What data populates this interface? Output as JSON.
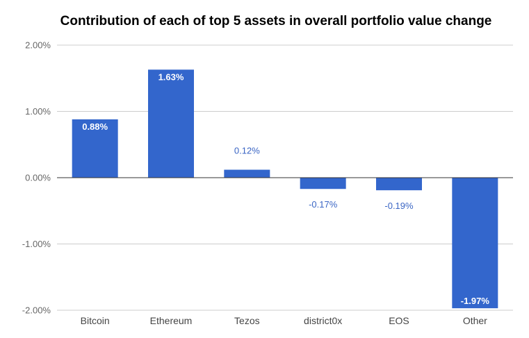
{
  "chart_data": {
    "type": "bar",
    "title": "Contribution of each of top 5 assets in overall portfolio value change",
    "categories": [
      "Bitcoin",
      "Ethereum",
      "Tezos",
      "district0x",
      "EOS",
      "Other"
    ],
    "values": [
      0.88,
      1.63,
      0.12,
      -0.17,
      -0.19,
      -1.97
    ],
    "data_labels": [
      "0.88%",
      "1.63%",
      "0.12%",
      "-0.17%",
      "-0.19%",
      "-1.97%"
    ],
    "y_ticks": [
      2,
      1,
      0,
      -1,
      -2
    ],
    "y_tick_labels": [
      "2.00%",
      "1.00%",
      "0.00%",
      "-1.00%",
      "-2.00%"
    ],
    "ylim": [
      -2,
      2
    ],
    "grid": true,
    "legend": "none",
    "bar_color": "#3366cc",
    "outside_label_color": "#3a65c4"
  }
}
